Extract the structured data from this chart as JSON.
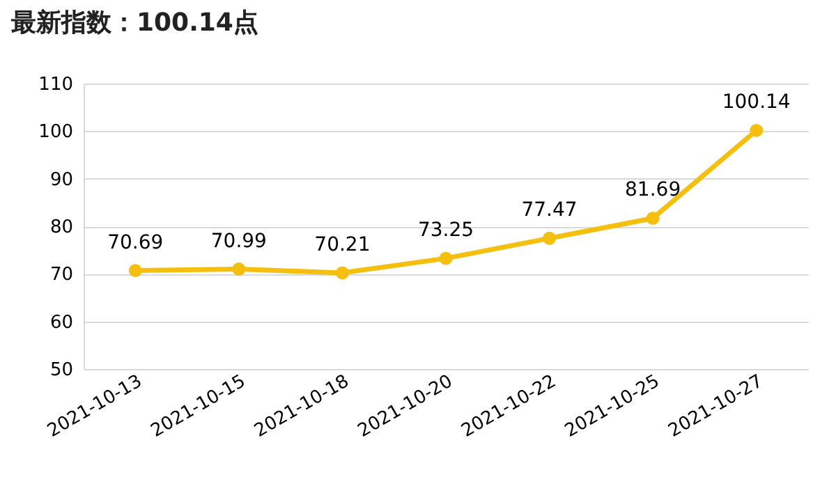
{
  "chart_data": {
    "type": "line",
    "title": "最新指数：100.14点",
    "categories": [
      "2021-10-13",
      "2021-10-15",
      "2021-10-18",
      "2021-10-20",
      "2021-10-22",
      "2021-10-25",
      "2021-10-27"
    ],
    "series": [
      {
        "color": "#f5bf0f",
        "values": [
          70.69,
          70.99,
          70.21,
          73.25,
          77.47,
          81.69,
          100.14
        ]
      }
    ],
    "ylim": [
      50,
      110
    ],
    "yticks": [
      50,
      60,
      70,
      80,
      90,
      100,
      110
    ],
    "grid": "y",
    "marker": "circle",
    "line_style": "solid",
    "data_labels": true,
    "legend": false
  }
}
